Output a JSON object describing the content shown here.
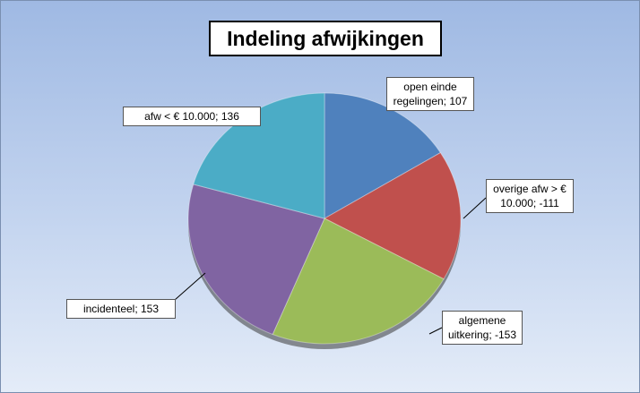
{
  "chart_data": {
    "type": "pie",
    "title": "Indeling afwijkingen",
    "values": [
      107,
      -111,
      -153,
      153,
      136
    ],
    "value_labels": [
      "open einde regelingen; 107",
      "overige afw > € 10.000; -111",
      "algemene uitkering; -153",
      "incidenteel; 153",
      "afw < € 10.000; 136"
    ],
    "colors": [
      "#4f81bd",
      "#c0504d",
      "#9bbb59",
      "#8064a2",
      "#4bacc6"
    ]
  }
}
